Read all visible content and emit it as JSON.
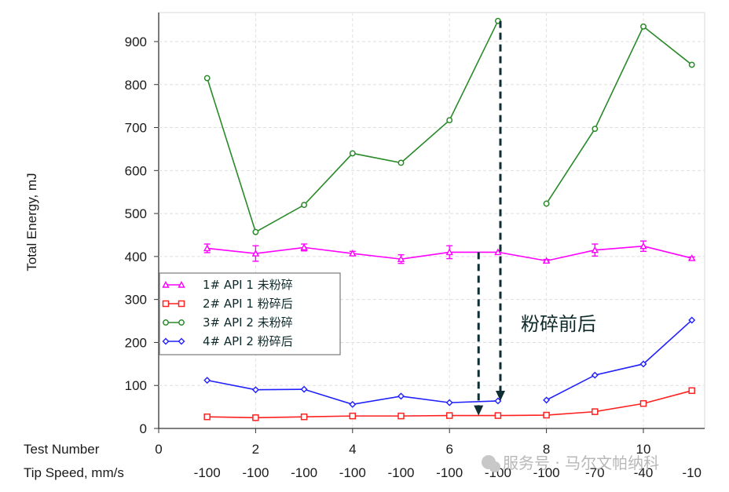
{
  "chart_data": {
    "type": "line",
    "title": "",
    "xlabel": "Test Number",
    "xlabel2": "Tip Speed, mm/s",
    "ylabel": "Total Energy, mJ",
    "xlim": [
      0,
      11.3
    ],
    "ylim": [
      0,
      970
    ],
    "x_ticks": [
      0,
      2,
      4,
      6,
      8,
      10
    ],
    "y_ticks": [
      0,
      100,
      200,
      300,
      400,
      500,
      600,
      700,
      800,
      900
    ],
    "grid": true,
    "legend_position": "left-center",
    "x": [
      1,
      2,
      3,
      4,
      5,
      6,
      7,
      8,
      9,
      10,
      11
    ],
    "tip_speeds": [
      "-100",
      "-100",
      "-100",
      "-100",
      "-100",
      "-100",
      "-100",
      "-100",
      "-70",
      "-40",
      "-10"
    ],
    "series": [
      {
        "name": "1#  API 1 未粉碎",
        "color": "#ff00ff",
        "marker": "triangle-errorbar",
        "values": [
          419,
          407,
          421,
          407,
          394,
          410,
          410,
          390,
          415,
          424,
          396
        ],
        "errors": [
          10,
          18,
          8,
          5,
          10,
          15,
          0,
          3,
          14,
          12,
          3
        ]
      },
      {
        "name": "2#  API 1 粉碎后",
        "color": "#ff2020",
        "marker": "square",
        "values": [
          27,
          25,
          27,
          29,
          29,
          30,
          30,
          31,
          39,
          58,
          88
        ]
      },
      {
        "name": "3#  API 2 未粉碎",
        "color": "#2a8a2a",
        "marker": "circle",
        "values": [
          815,
          457,
          520,
          640,
          618,
          717,
          948,
          523,
          697,
          935,
          846
        ],
        "break_after_index": 6
      },
      {
        "name": "4#  API 2 粉碎后",
        "color": "#2020ff",
        "marker": "diamond",
        "values": [
          112,
          90,
          91,
          56,
          75,
          60,
          64,
          66,
          124,
          150,
          252
        ],
        "break_after_index": 6
      }
    ],
    "annotations": [
      {
        "text": "粉碎前后",
        "type": "label"
      },
      {
        "type": "dashed-arrow",
        "from": [
          6.6,
          410
        ],
        "to": [
          6.6,
          30
        ]
      },
      {
        "type": "dashed-arrow",
        "from": [
          7.05,
          948
        ],
        "to": [
          7.05,
          64
        ]
      }
    ]
  },
  "labels": {
    "ylabel": "Total Energy, mJ",
    "xlabel": "Test Number",
    "xlabel2": "Tip Speed, mm/s",
    "annotation": "粉碎前后",
    "watermark": "服务号 · 马尔文帕纳科"
  },
  "legend": [
    {
      "label": "1#  API 1 未粉碎"
    },
    {
      "label": "2#  API 1 粉碎后"
    },
    {
      "label": "3#  API 2 未粉碎"
    },
    {
      "label": "4#  API 2 粉碎后"
    }
  ]
}
